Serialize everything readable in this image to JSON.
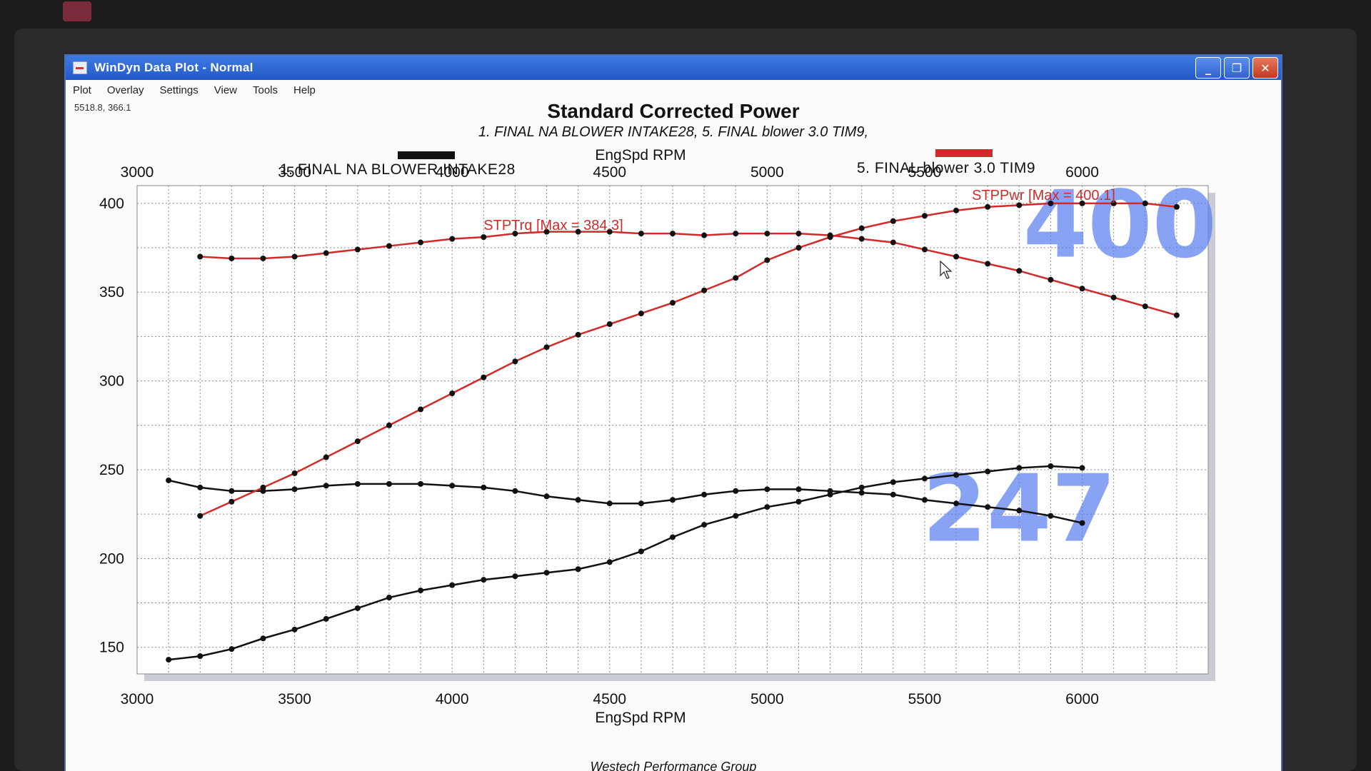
{
  "window": {
    "title": "WinDyn Data Plot - Normal",
    "controls": {
      "minimize": "_",
      "maximize": "❐",
      "close": "✕"
    }
  },
  "menu": [
    "Plot",
    "Overlay",
    "Settings",
    "View",
    "Tools",
    "Help"
  ],
  "cursor_readout": "5518.8, 366.1",
  "colors": {
    "run1": "#111111",
    "run5": "#d22a2a",
    "overlay": "#5c7ff0",
    "titlebar": "#2458c8"
  },
  "footer": "Westech Performance Group",
  "chart_data": {
    "type": "line",
    "title": "Standard Corrected Power",
    "subtitle": "1. FINAL NA BLOWER INTAKE28, 5. FINAL blower 3.0 TIM9,",
    "xlabel": "EngSpd RPM",
    "xlim": [
      3000,
      6400
    ],
    "ylim": [
      135,
      410
    ],
    "xticks": [
      3000,
      3500,
      4000,
      4500,
      5000,
      5500,
      6000
    ],
    "yticks": [
      150,
      200,
      250,
      300,
      350,
      400
    ],
    "grid": true,
    "legend": [
      {
        "name": "1. FINAL NA BLOWER INTAKE28",
        "color": "#111111"
      },
      {
        "name": "5. FINAL blower 3.0 TIM9",
        "color": "#d22a2a"
      }
    ],
    "annotations": [
      {
        "text": "STPTrq [Max = 384.3]",
        "x": 4100,
        "y": 385,
        "color": "#d22a2a"
      },
      {
        "text": "STPPwr [Max = 400.1]",
        "x": 5650,
        "y": 402,
        "color": "#d22a2a"
      }
    ],
    "overlay_numbers": [
      {
        "text": "400",
        "x": 6120,
        "y": 370
      },
      {
        "text": "247",
        "x": 5800,
        "y": 210
      }
    ],
    "series": [
      {
        "color": "#111111",
        "x": [
          3100,
          3200,
          3300,
          3400,
          3500,
          3600,
          3700,
          3800,
          3900,
          4000,
          4100,
          4200,
          4300,
          4400,
          4500,
          4600,
          4700,
          4800,
          4900,
          5000,
          5100,
          5200,
          5300,
          5400,
          5500,
          5600,
          5700,
          5800,
          5900,
          6000
        ],
        "values": [
          244,
          240,
          238,
          238,
          239,
          241,
          242,
          242,
          242,
          241,
          240,
          238,
          235,
          233,
          231,
          231,
          233,
          236,
          238,
          239,
          239,
          238,
          237,
          236,
          233,
          231,
          229,
          227,
          224,
          220
        ]
      },
      {
        "color": "#111111",
        "x": [
          3100,
          3200,
          3300,
          3400,
          3500,
          3600,
          3700,
          3800,
          3900,
          4000,
          4100,
          4200,
          4300,
          4400,
          4500,
          4600,
          4700,
          4800,
          4900,
          5000,
          5100,
          5200,
          5300,
          5400,
          5500,
          5600,
          5700,
          5800,
          5900,
          6000
        ],
        "values": [
          143,
          145,
          149,
          155,
          160,
          166,
          172,
          178,
          182,
          185,
          188,
          190,
          192,
          194,
          198,
          204,
          212,
          219,
          224,
          229,
          232,
          236,
          240,
          243,
          245,
          247,
          249,
          251,
          252,
          251
        ]
      },
      {
        "color": "#d22a2a",
        "x": [
          3200,
          3300,
          3400,
          3500,
          3600,
          3700,
          3800,
          3900,
          4000,
          4100,
          4200,
          4300,
          4400,
          4500,
          4600,
          4700,
          4800,
          4900,
          5000,
          5100,
          5200,
          5300,
          5400,
          5500,
          5600,
          5700,
          5800,
          5900,
          6000,
          6100,
          6200,
          6300
        ],
        "values": [
          370,
          369,
          369,
          370,
          372,
          374,
          376,
          378,
          380,
          381,
          383,
          384,
          384,
          384,
          383,
          383,
          382,
          383,
          383,
          383,
          382,
          380,
          378,
          374,
          370,
          366,
          362,
          357,
          352,
          347,
          342,
          337
        ]
      },
      {
        "color": "#d22a2a",
        "x": [
          3200,
          3300,
          3400,
          3500,
          3600,
          3700,
          3800,
          3900,
          4000,
          4100,
          4200,
          4300,
          4400,
          4500,
          4600,
          4700,
          4800,
          4900,
          5000,
          5100,
          5200,
          5300,
          5400,
          5500,
          5600,
          5700,
          5800,
          5900,
          6000,
          6100,
          6200,
          6300
        ],
        "values": [
          224,
          232,
          240,
          248,
          257,
          266,
          275,
          284,
          293,
          302,
          311,
          319,
          326,
          332,
          338,
          344,
          351,
          358,
          368,
          375,
          381,
          386,
          390,
          393,
          396,
          398,
          399,
          400,
          400,
          400,
          400,
          398
        ]
      }
    ]
  }
}
